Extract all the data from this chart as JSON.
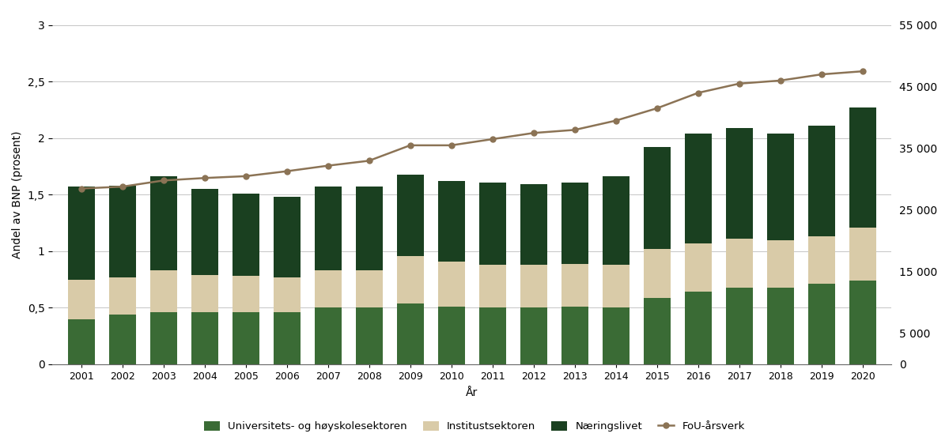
{
  "years": [
    2001,
    2002,
    2003,
    2004,
    2005,
    2006,
    2007,
    2008,
    2009,
    2010,
    2011,
    2012,
    2013,
    2014,
    2015,
    2016,
    2017,
    2018,
    2019,
    2020
  ],
  "uni": [
    0.4,
    0.44,
    0.46,
    0.46,
    0.46,
    0.46,
    0.5,
    0.5,
    0.54,
    0.51,
    0.5,
    0.5,
    0.51,
    0.5,
    0.59,
    0.64,
    0.68,
    0.68,
    0.71,
    0.74
  ],
  "inst": [
    0.35,
    0.33,
    0.37,
    0.33,
    0.32,
    0.31,
    0.33,
    0.33,
    0.42,
    0.4,
    0.38,
    0.38,
    0.38,
    0.38,
    0.43,
    0.43,
    0.43,
    0.42,
    0.42,
    0.47
  ],
  "naering": [
    0.82,
    0.81,
    0.83,
    0.76,
    0.73,
    0.71,
    0.74,
    0.74,
    0.72,
    0.71,
    0.73,
    0.71,
    0.72,
    0.78,
    0.9,
    0.97,
    0.98,
    0.94,
    0.98,
    1.06
  ],
  "fou_arsverk": [
    28500,
    28800,
    29800,
    30200,
    30500,
    31300,
    32200,
    33000,
    35500,
    35500,
    36500,
    37500,
    38000,
    39500,
    41500,
    44000,
    45500,
    46000,
    47000,
    47500
  ],
  "color_uni": "#3a6b35",
  "color_inst": "#d9cba8",
  "color_naering": "#1a4020",
  "color_line": "#8b7355",
  "ylabel_left": "Andel av BNP (prosent)",
  "xlabel": "År",
  "ylim_left": [
    0,
    3
  ],
  "ylim_right": [
    0,
    55000
  ],
  "yticks_left": [
    0,
    0.5,
    1.0,
    1.5,
    2.0,
    2.5,
    3.0
  ],
  "ytick_labels_left": [
    "0",
    "0,5",
    "1",
    "1,5",
    "2",
    "2,5",
    "3"
  ],
  "yticks_right": [
    0,
    5000,
    15000,
    25000,
    35000,
    45000,
    55000
  ],
  "ytick_labels_right": [
    "0",
    "5 000",
    "15 000",
    "25 000",
    "35 000",
    "45 000",
    "55 000"
  ],
  "legend_labels": [
    "Universitets- og høyskolesektoren",
    "Institustsektoren",
    "Næringslivet",
    "FoU-årsverk"
  ],
  "grid_color": "#bbbbbb",
  "bar_width": 0.65
}
